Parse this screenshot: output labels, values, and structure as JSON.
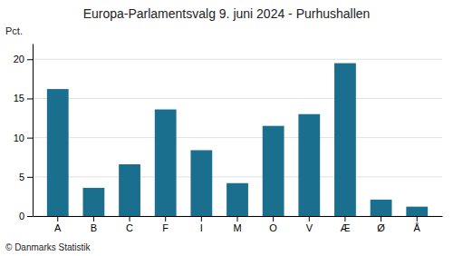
{
  "chart_data": {
    "type": "bar",
    "title": "Europa-Parlamentsvalg 9. juni 2024 - Purhushallen",
    "ylabel": "Pct.",
    "annotations": [
      "© Danmarks Statistik"
    ],
    "categories": [
      "A",
      "B",
      "C",
      "F",
      "I",
      "M",
      "O",
      "V",
      "Æ",
      "Ø",
      "Å"
    ],
    "values": [
      16.2,
      3.6,
      6.6,
      13.6,
      8.4,
      4.2,
      11.5,
      13.0,
      19.5,
      2.1,
      1.2
    ],
    "color": "#1a6e8e",
    "ylim": [
      0,
      22
    ],
    "yticks": [
      0,
      5,
      10,
      15,
      20
    ],
    "grid": true
  }
}
